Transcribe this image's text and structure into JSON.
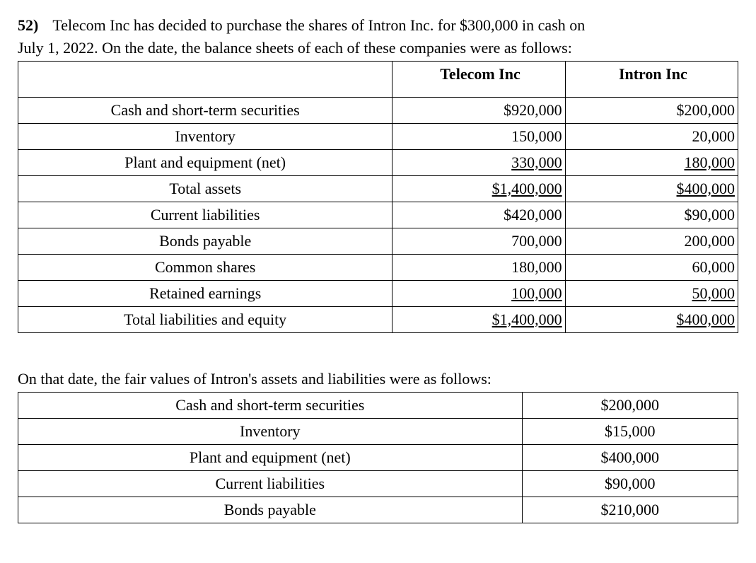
{
  "question": {
    "number": "52)",
    "text_line1": "Telecom Inc has decided to purchase the shares of Intron Inc. for $300,000 in cash on",
    "text_line2": "July 1, 2022. On the date, the balance sheets of each of these companies were as follows:"
  },
  "table1": {
    "headers": {
      "col1": "",
      "col2": "Telecom Inc",
      "col3": "Intron Inc"
    },
    "rows": [
      {
        "label": "Cash and short-term securities",
        "telecom": "$920,000",
        "intron": "$200,000",
        "underline": false
      },
      {
        "label": "Inventory",
        "telecom": "150,000",
        "intron": "20,000",
        "underline": false
      },
      {
        "label": "Plant and equipment (net)",
        "telecom": "330,000",
        "intron": "180,000",
        "underline": true
      },
      {
        "label": "Total assets",
        "telecom": "$1,400,000",
        "intron": "$400,000",
        "underline": true
      },
      {
        "label": "Current liabilities",
        "telecom": "$420,000",
        "intron": "$90,000",
        "underline": false
      },
      {
        "label": "Bonds payable",
        "telecom": "700,000",
        "intron": "200,000",
        "underline": false
      },
      {
        "label": "Common shares",
        "telecom": "180,000",
        "intron": "60,000",
        "underline": false
      },
      {
        "label": "Retained earnings",
        "telecom": "100,000",
        "intron": "50,000",
        "underline": true
      },
      {
        "label": "Total liabilities and equity",
        "telecom": "$1,400,000",
        "intron": "$400,000",
        "underline": true
      }
    ]
  },
  "section2_text": "On that date, the fair values of Intron's assets and liabilities were as follows:",
  "table2": {
    "rows": [
      {
        "label": "Cash and short-term securities",
        "value": "$200,000"
      },
      {
        "label": "Inventory",
        "value": "$15,000"
      },
      {
        "label": "Plant and equipment (net)",
        "value": "$400,000"
      },
      {
        "label": "Current liabilities",
        "value": "$90,000"
      },
      {
        "label": "Bonds payable",
        "value": "$210,000"
      }
    ]
  },
  "style": {
    "font_family": "Times New Roman",
    "font_size_pt": 16,
    "text_color": "#000000",
    "background_color": "#ffffff",
    "border_color": "#000000"
  }
}
